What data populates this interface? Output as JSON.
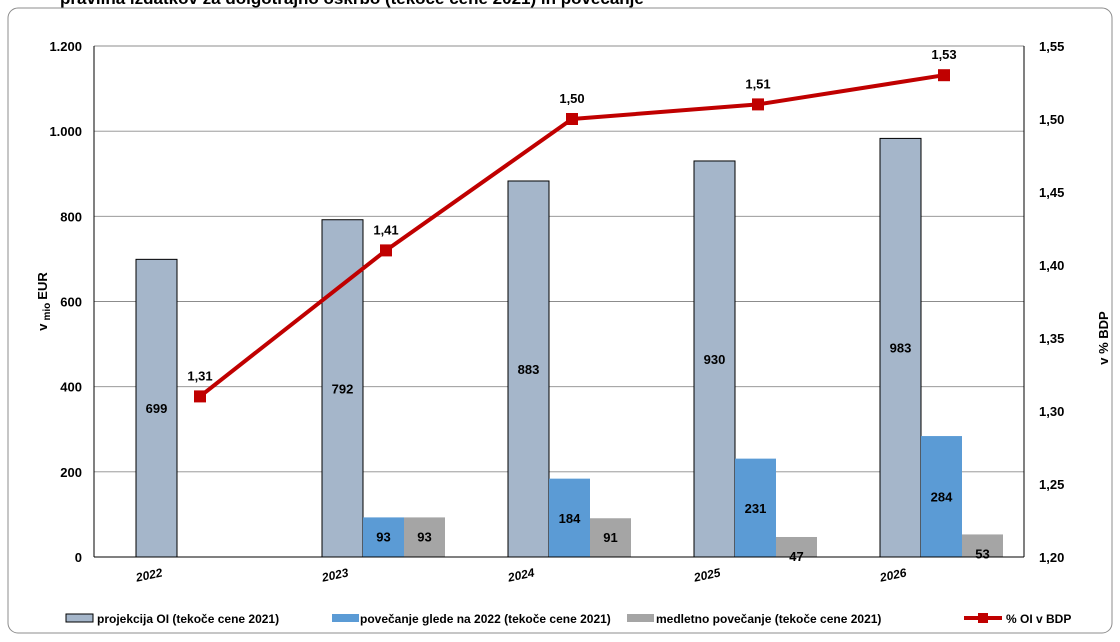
{
  "page": {
    "truncated_title": "pravlina izdatkov za dolgotrajno oskrbo (tekoče cene 2021) in povečanje"
  },
  "chart_data": {
    "type": "bar",
    "categories": [
      "2022",
      "2023",
      "2024",
      "2025",
      "2026"
    ],
    "series": [
      {
        "name": "projekcija OI (tekoče cene 2021)",
        "kind": "bar",
        "axis": "left",
        "values": [
          699,
          792,
          883,
          930,
          983
        ],
        "labels": [
          "699",
          "792",
          "883",
          "930",
          "983"
        ],
        "color": "#a5b6ca"
      },
      {
        "name": "povečanje glede na 2022 (tekoče cene 2021)",
        "kind": "bar",
        "axis": "left",
        "values": [
          null,
          93,
          184,
          231,
          284
        ],
        "labels": [
          null,
          "93",
          "184",
          "231",
          "284"
        ],
        "color": "#5b9bd5"
      },
      {
        "name": "medletno povečanje (tekoče cene 2021)",
        "kind": "bar",
        "axis": "left",
        "values": [
          null,
          93,
          91,
          47,
          53
        ],
        "labels": [
          null,
          "93",
          "91",
          "47",
          "53"
        ],
        "color": "#a5a5a5"
      },
      {
        "name": "% OI v BDP",
        "kind": "line",
        "axis": "right",
        "values": [
          1.31,
          1.41,
          1.5,
          1.51,
          1.53
        ],
        "labels": [
          "1,31",
          "1,41",
          "1,50",
          "1,51",
          "1,53"
        ],
        "color": "#c00000"
      }
    ],
    "y_left": {
      "label_main": "v",
      "label_sub": "mio",
      "label_end": "EUR",
      "range": [
        0,
        1200
      ],
      "ticks": [
        0,
        200,
        400,
        600,
        800,
        1000,
        1200
      ],
      "tick_labels": [
        "0",
        "200",
        "400",
        "600",
        "800",
        "1.000",
        "1.200"
      ]
    },
    "y_right": {
      "label": "v % BDP",
      "range": [
        1.2,
        1.55
      ],
      "ticks": [
        1.2,
        1.25,
        1.3,
        1.35,
        1.4,
        1.45,
        1.5,
        1.55
      ],
      "tick_labels": [
        "1,20",
        "1,25",
        "1,30",
        "1,35",
        "1,40",
        "1,45",
        "1,50",
        "1,55"
      ]
    },
    "grid": true,
    "legend_position": "bottom"
  }
}
